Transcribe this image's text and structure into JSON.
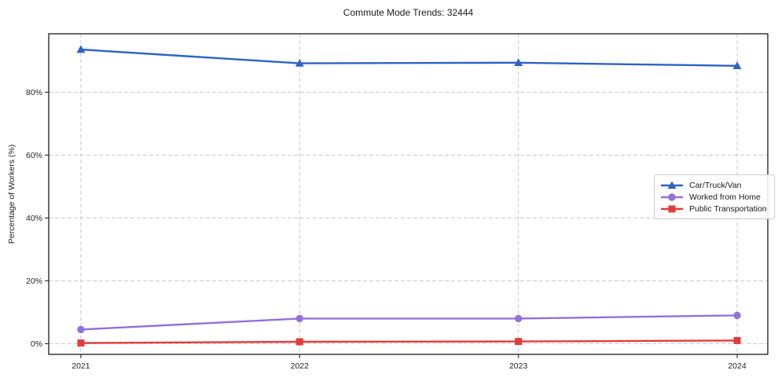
{
  "chart_data": {
    "type": "line",
    "title": "Commute Mode Trends: 32444",
    "xlabel": "",
    "ylabel": "Percentage of Workers (%)",
    "x": [
      2021,
      2022,
      2023,
      2024
    ],
    "x_tick_labels": [
      "2021",
      "2022",
      "2023",
      "2024"
    ],
    "yticks": [
      0,
      20,
      40,
      60,
      80
    ],
    "ytick_labels": [
      "0%",
      "20%",
      "40%",
      "60%",
      "80%"
    ],
    "xlim": [
      2020.853,
      2024.14
    ],
    "ylim": [
      -3.4,
      98.6
    ],
    "grid": true,
    "grid_style": "dashed",
    "legend_position": "center-right",
    "series": [
      {
        "name": "Car/Truck/Van",
        "marker": "triangle",
        "color": "#2e62c3",
        "values": [
          93.6,
          89.2,
          89.4,
          88.4
        ]
      },
      {
        "name": "Worked from Home",
        "marker": "circle",
        "color": "#9370db",
        "values": [
          4.5,
          8.0,
          8.0,
          9.0
        ]
      },
      {
        "name": "Public Transportation",
        "marker": "square",
        "color": "#e23c3c",
        "values": [
          0.2,
          0.6,
          0.7,
          1.0
        ]
      }
    ],
    "colors": {
      "background": "#ffffff",
      "grid": "#c9c9c9",
      "spine": "#1a1a1a",
      "tick_label": "#262626",
      "legend_border": "#cccccc"
    }
  }
}
